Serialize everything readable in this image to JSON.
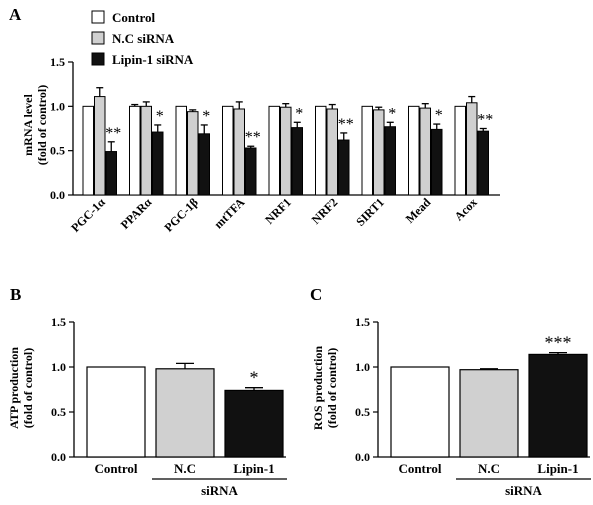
{
  "panel_labels": {
    "a": "A",
    "b": "B",
    "c": "C"
  },
  "colors": {
    "control": "#ffffff",
    "nc": "#d0d0d0",
    "lipin": "#111111",
    "stroke": "#000000"
  },
  "chart_data": [
    {
      "panel": "A",
      "type": "bar",
      "ylabel_line1": "mRNA level",
      "ylabel_line2": "(fold of control)",
      "ylim": [
        0,
        1.5
      ],
      "yticks": [
        "0.0",
        "0.5",
        "1.0",
        "1.5"
      ],
      "legend": {
        "placement": "top-left",
        "entries": [
          "Control",
          "N.C siRNA",
          "Lipin-1 siRNA"
        ]
      },
      "categories": [
        "PGC-1α",
        "PPARα",
        "PGC-1β",
        "mtTFA",
        "NRF1",
        "NRF2",
        "SIRT1",
        "Mead",
        "Acox"
      ],
      "series": [
        {
          "name": "Control",
          "values": [
            1.0,
            1.0,
            1.0,
            1.0,
            1.0,
            1.0,
            1.0,
            1.0,
            1.0
          ],
          "errors": [
            0,
            0.02,
            0,
            0,
            0,
            0,
            0,
            0,
            0
          ]
        },
        {
          "name": "N.C siRNA",
          "values": [
            1.11,
            1.0,
            0.94,
            0.97,
            0.99,
            0.97,
            0.96,
            0.98,
            1.04
          ],
          "errors": [
            0.1,
            0.05,
            0.02,
            0.08,
            0.04,
            0.05,
            0.03,
            0.05,
            0.07
          ]
        },
        {
          "name": "Lipin-1 siRNA",
          "values": [
            0.49,
            0.71,
            0.69,
            0.53,
            0.76,
            0.62,
            0.77,
            0.74,
            0.72
          ],
          "errors": [
            0.11,
            0.08,
            0.1,
            0.02,
            0.06,
            0.08,
            0.05,
            0.06,
            0.03
          ]
        }
      ],
      "significance": [
        "**",
        "*",
        "*",
        "**",
        "*",
        "**",
        "*",
        "*",
        "**"
      ]
    },
    {
      "panel": "B",
      "type": "bar",
      "ylabel_line1": "ATP production",
      "ylabel_line2": "(fold of control)",
      "ylim": [
        0,
        1.5
      ],
      "yticks": [
        "0.0",
        "0.5",
        "1.0",
        "1.5"
      ],
      "categories": [
        "Control",
        "N.C",
        "Lipin-1"
      ],
      "values": [
        1.0,
        0.98,
        0.74
      ],
      "errors": [
        0,
        0.06,
        0.03
      ],
      "significance": [
        "",
        "",
        "*"
      ],
      "group_label": "siRNA"
    },
    {
      "panel": "C",
      "type": "bar",
      "ylabel_line1": "ROS production",
      "ylabel_line2": "(fold of control)",
      "ylim": [
        0,
        1.5
      ],
      "yticks": [
        "0.0",
        "0.5",
        "1.0",
        "1.5"
      ],
      "categories": [
        "Control",
        "N.C",
        "Lipin-1"
      ],
      "values": [
        1.0,
        0.97,
        1.14
      ],
      "errors": [
        0,
        0.01,
        0.02
      ],
      "significance": [
        "",
        "",
        "***"
      ],
      "group_label": "siRNA"
    }
  ]
}
